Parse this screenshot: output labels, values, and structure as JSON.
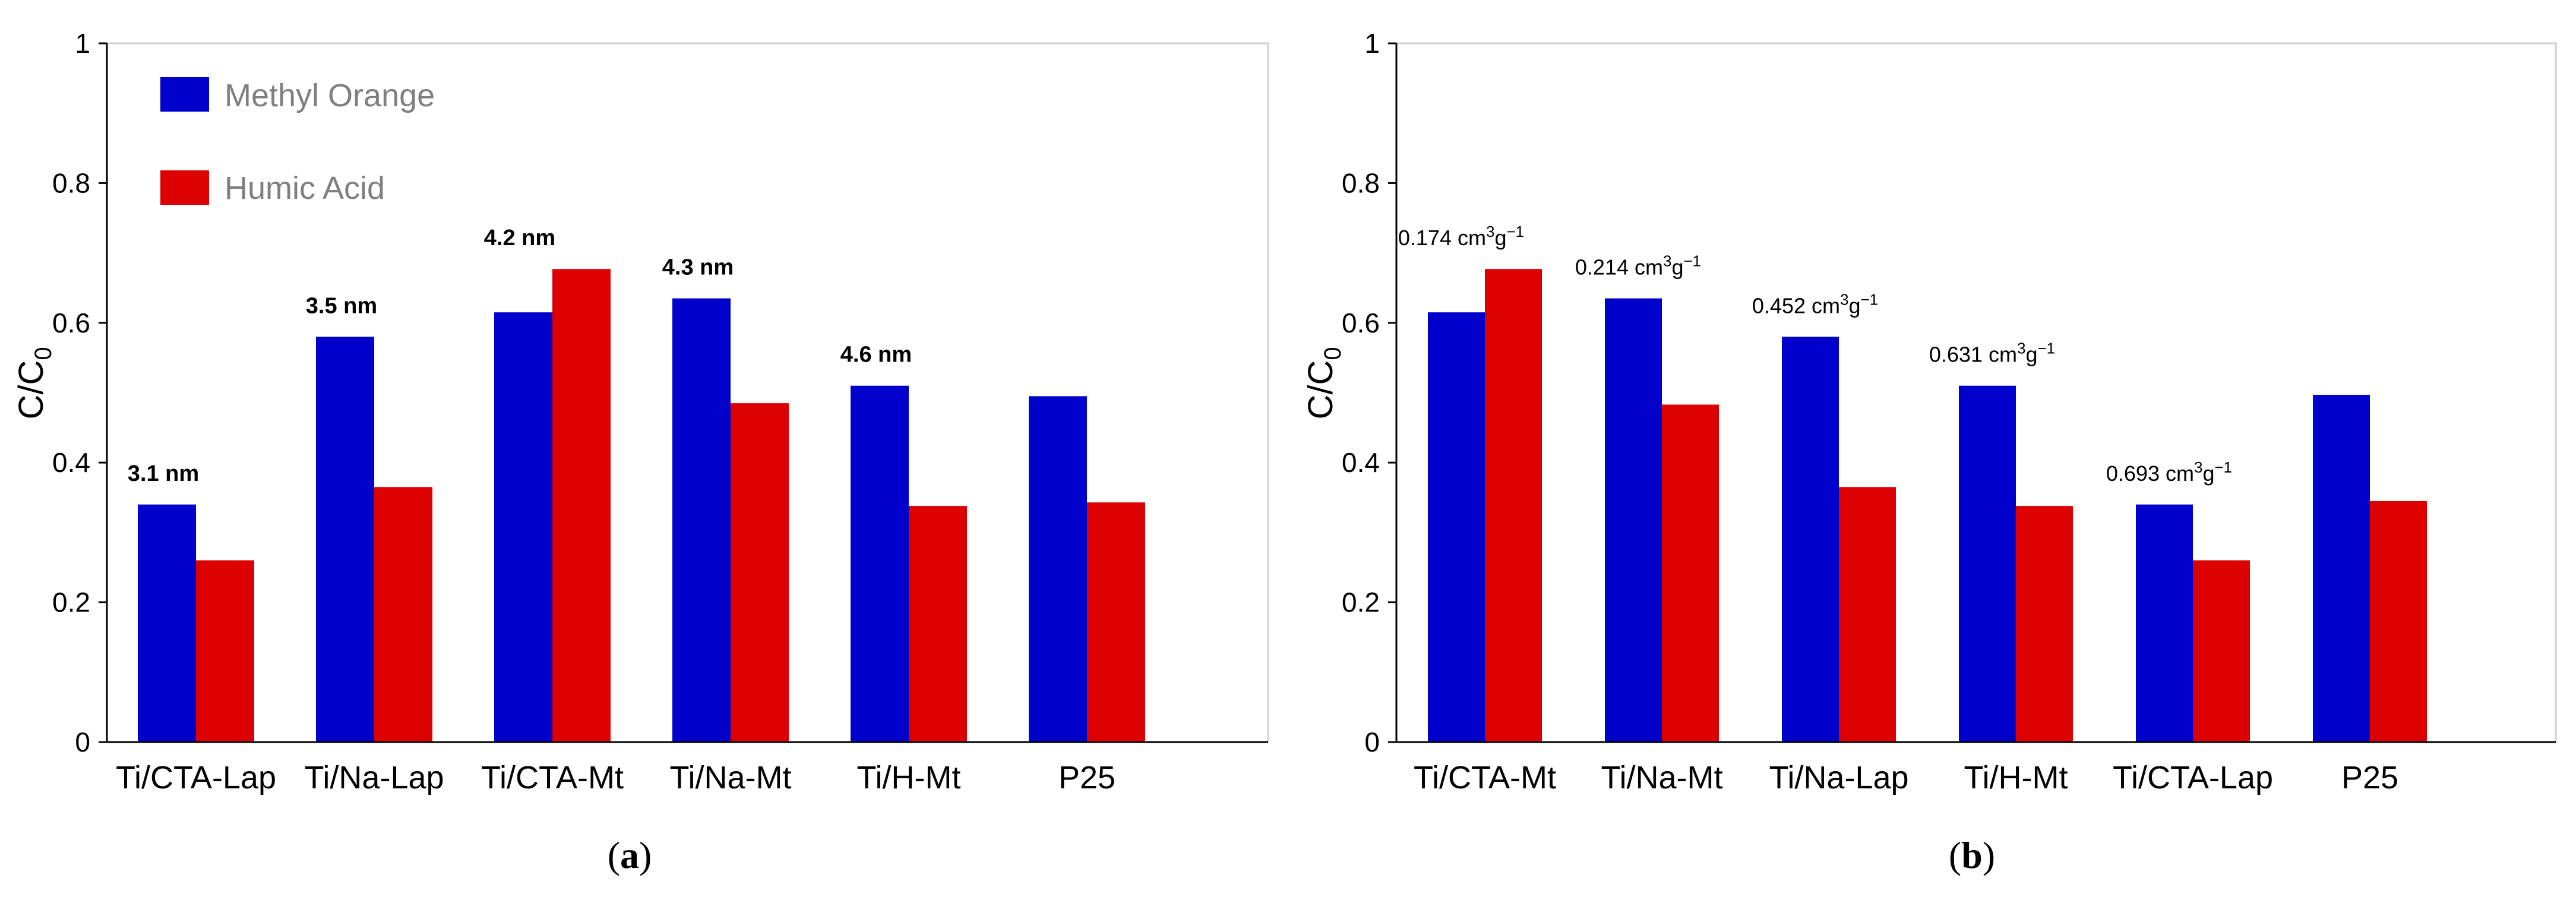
{
  "colors": {
    "methyl_orange": "#0000cc",
    "humic_acid": "#dd0000"
  },
  "legend": {
    "methyl_orange": "Methyl Orange",
    "humic_acid": "Humic Acid"
  },
  "chart_data": [
    {
      "type": "bar",
      "panel_label": "a",
      "categories": [
        "Ti/CTA-Lap",
        "Ti/Na-Lap",
        "Ti/CTA-Mt",
        "Ti/Na-Mt",
        "Ti/H-Mt",
        "P25"
      ],
      "series": [
        {
          "name": "Methyl Orange",
          "values": [
            0.34,
            0.58,
            0.615,
            0.635,
            0.51,
            0.495
          ]
        },
        {
          "name": "Humic Acid",
          "values": [
            0.26,
            0.365,
            0.677,
            0.485,
            0.338,
            0.343
          ]
        }
      ],
      "annotations": [
        "3.1 nm",
        "3.5 nm",
        "4.2 nm",
        "4.3 nm",
        "4.6 nm",
        ""
      ],
      "ylabel": "C/C",
      "ylabel_sub": "0",
      "ylim": [
        0,
        1
      ],
      "yticks": [
        "0",
        "0.2",
        "0.4",
        "0.6",
        "0.8",
        "1"
      ],
      "legend_position": "top-left"
    },
    {
      "type": "bar",
      "panel_label": "b",
      "categories": [
        "Ti/CTA-Mt",
        "Ti/Na-Mt",
        "Ti/Na-Lap",
        "Ti/H-Mt",
        "Ti/CTA-Lap",
        "P25"
      ],
      "series": [
        {
          "name": "Methyl Orange",
          "values": [
            0.615,
            0.635,
            0.58,
            0.51,
            0.34,
            0.497
          ]
        },
        {
          "name": "Humic Acid",
          "values": [
            0.677,
            0.483,
            0.365,
            0.338,
            0.26,
            0.345
          ]
        }
      ],
      "annotations": [
        {
          "value": "0.174",
          "unit": "cm",
          "sup1": "3",
          "g": "g",
          "sup2": "−1"
        },
        {
          "value": "0.214",
          "unit": "cm",
          "sup1": "3",
          "g": "g",
          "sup2": "−1"
        },
        {
          "value": "0.452",
          "unit": "cm",
          "sup1": "3",
          "g": "g",
          "sup2": "−1"
        },
        {
          "value": "0.631",
          "unit": "cm",
          "sup1": "3",
          "g": "g",
          "sup2": "−1"
        },
        {
          "value": "0.693",
          "unit": "cm",
          "sup1": "3",
          "g": "g",
          "sup2": "−1"
        },
        null
      ],
      "ylabel": "C/C",
      "ylabel_sub": "0",
      "ylim": [
        0,
        1
      ],
      "yticks": [
        "0",
        "0.2",
        "0.4",
        "0.6",
        "0.8",
        "1"
      ]
    }
  ]
}
